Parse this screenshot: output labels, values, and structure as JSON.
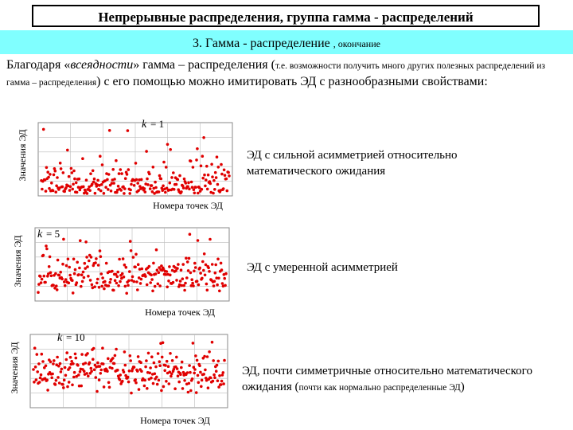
{
  "slide": {
    "title": "Непрерывные распределения, группа гамма - распределений",
    "subtitle_main": "3. Гамма - распределение",
    "subtitle_small": ", окончание",
    "intro_part1": "Благодаря «",
    "intro_italic": "всеядности",
    "intro_part2": "» гамма – распределения (",
    "intro_small": "т.е. возможности получить много других полезных распределений из гамма – распределения",
    "intro_part3": ") с его помощью можно имитировать ЭД с разнообразными свойствами:"
  },
  "plots": [
    {
      "ylabel": "Значения ЭД",
      "xlabel": "Номера точек ЭД",
      "k_label": "k",
      "k_eq": "= 1",
      "description": "ЭД с сильной асимметрией относительно математического ожидания",
      "description_small": ""
    },
    {
      "ylabel": "Значения ЭД",
      "xlabel": "Номера точек ЭД",
      "k_label": "k",
      "k_eq": "= 5",
      "description": "ЭД с умеренной асимметрией",
      "description_small": ""
    },
    {
      "ylabel": "Значения ЭД",
      "xlabel": "Номера точек ЭД",
      "k_label": "k",
      "k_eq": "= 10",
      "description": "ЭД, почти симметричные относительно математического ожидания (",
      "description_small": "почти как нормально распределенные ЭД",
      "description_end": ")"
    }
  ],
  "colors": {
    "points": "#e00000",
    "subtitle_bg": "#80ffff",
    "grid": "#bbbbbb"
  }
}
